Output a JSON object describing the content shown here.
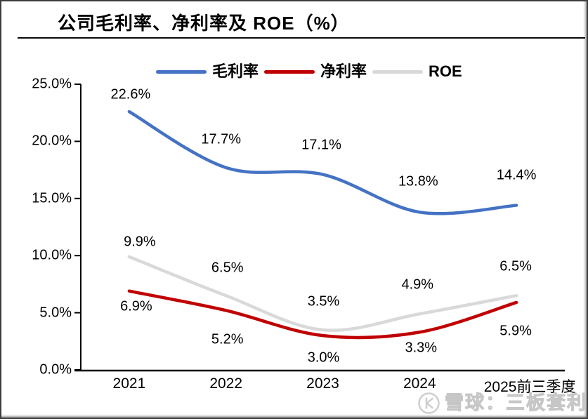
{
  "page": {
    "watermark_text": "雪球：三板套利"
  },
  "chart_data": {
    "type": "line",
    "smooth": true,
    "title": "公司毛利率、净利率及 ROE（%）",
    "categories": [
      "2021",
      "2022",
      "2023",
      "2024",
      "2025前三季度"
    ],
    "series": [
      {
        "name": "毛利率",
        "color": "#4472C4",
        "values": [
          22.6,
          17.7,
          17.1,
          13.8,
          14.4
        ],
        "point_labels": [
          "22.6%",
          "17.7%",
          "17.1%",
          "13.8%",
          "14.4%"
        ]
      },
      {
        "name": "净利率",
        "color": "#C00000",
        "values": [
          6.9,
          5.2,
          3.0,
          3.3,
          5.9
        ],
        "point_labels": [
          "6.9%",
          "5.2%",
          "3.0%",
          "3.3%",
          "5.9%"
        ]
      },
      {
        "name": "ROE",
        "color": "#D9D9D9",
        "values": [
          9.9,
          6.5,
          3.5,
          4.9,
          6.5
        ],
        "point_labels": [
          "9.9%",
          "6.5%",
          "3.5%",
          "4.9%",
          "6.5%"
        ]
      }
    ],
    "ylim": [
      0,
      25
    ],
    "ytick_labels": [
      "0.0%",
      "5.0%",
      "10.0%",
      "15.0%",
      "20.0%",
      "25.0%"
    ],
    "xlabel": "",
    "ylabel": "",
    "grid": false,
    "legend_position": "top",
    "axis_color": "#000000"
  }
}
